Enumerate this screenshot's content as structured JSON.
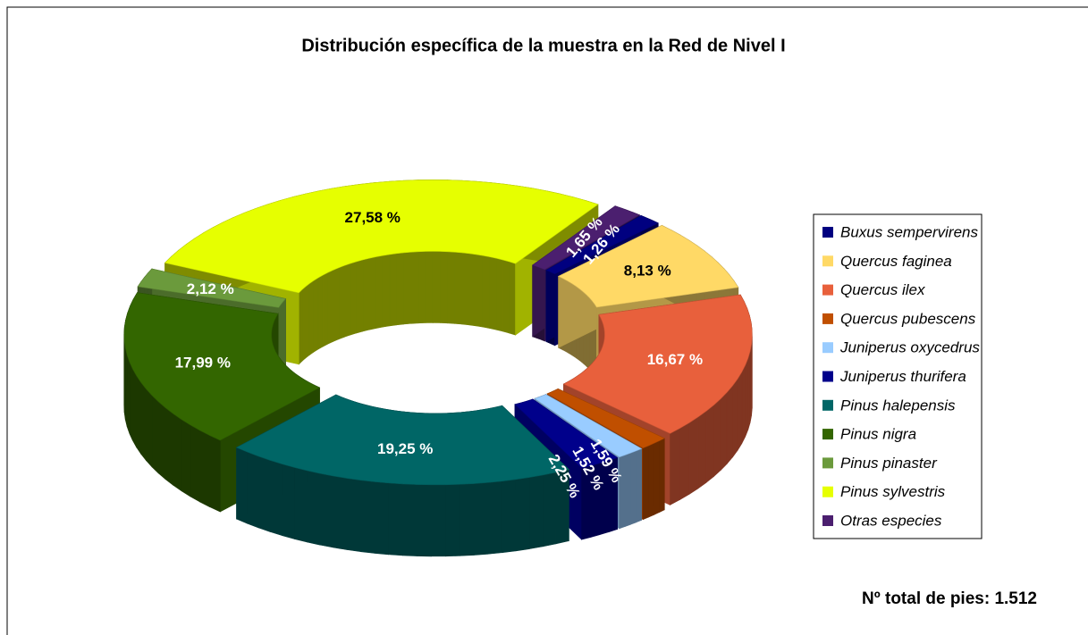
{
  "chart_data": {
    "type": "donut3d",
    "title": "Distribución específica de la muestra en la Red de Nivel I",
    "footer": "Nº total de pies: 1.512",
    "categories": [
      "Buxus sempervirens",
      "Quercus faginea",
      "Quercus ilex",
      "Quercus pubescens",
      "Juniperus oxycedrus",
      "Juniperus thurifera",
      "Pinus halepensis",
      "Pinus nigra",
      "Pinus pinaster",
      "Pinus sylvestris",
      "Otras especies"
    ],
    "values": [
      1.26,
      8.13,
      16.67,
      1.59,
      1.52,
      2.25,
      19.25,
      17.99,
      2.12,
      27.58,
      1.65
    ],
    "value_labels": [
      "1,26 %",
      "8,13 %",
      "16,67 %",
      "1,59 %",
      "1,52 %",
      "2,25 %",
      "19,25 %",
      "17,99 %",
      "2,12 %",
      "27,58 %",
      "1,65 %"
    ],
    "colors": [
      "#000080",
      "#ffd966",
      "#e8603c",
      "#c04f00",
      "#99ccff",
      "#00008b",
      "#006666",
      "#336600",
      "#6b9a3c",
      "#e6ff00",
      "#4b1f6f"
    ],
    "legend": "right"
  }
}
